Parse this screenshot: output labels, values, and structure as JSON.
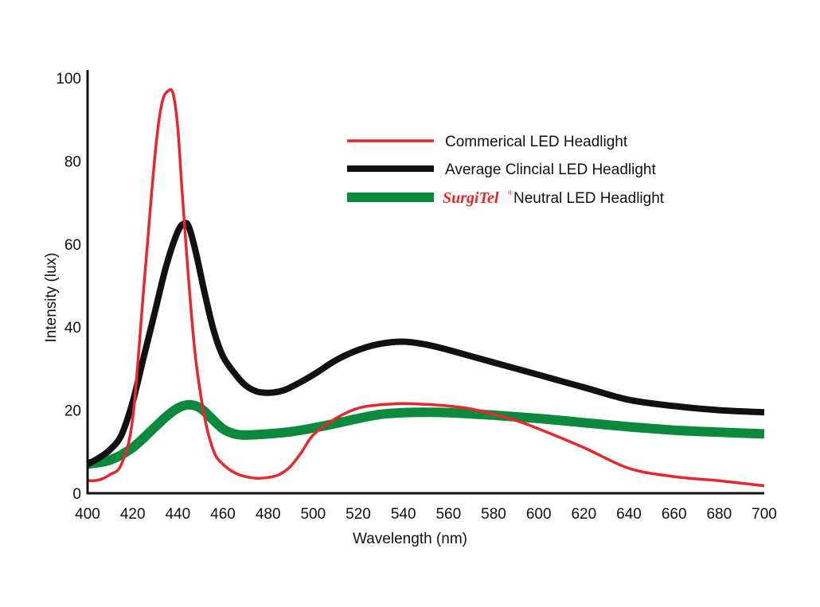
{
  "chart_data": {
    "type": "line",
    "title": "",
    "xlabel": "Wavelength (nm)",
    "ylabel": "Intensity (lux)",
    "xlim": [
      400,
      700
    ],
    "ylim": [
      0,
      100
    ],
    "xticks": [
      400,
      420,
      440,
      460,
      480,
      500,
      520,
      540,
      560,
      580,
      600,
      620,
      640,
      660,
      680,
      700
    ],
    "yticks": [
      0,
      20,
      40,
      60,
      80,
      100
    ],
    "grid": false,
    "legend_position": "top-right",
    "series": [
      {
        "name": "Commerical LED Headlight",
        "color": "#e8262b",
        "x": [
          400,
          405,
          410,
          415,
          420,
          425,
          430,
          433,
          436,
          438,
          440,
          442,
          445,
          448,
          452,
          456,
          460,
          465,
          470,
          475,
          480,
          485,
          490,
          495,
          500,
          510,
          520,
          530,
          540,
          550,
          560,
          570,
          580,
          590,
          600,
          620,
          640,
          660,
          680,
          700
        ],
        "y": [
          3,
          3.2,
          4.5,
          7,
          18,
          50,
          82,
          94,
          97,
          96,
          88,
          72,
          50,
          32,
          18,
          10,
          7,
          5,
          4,
          3.6,
          3.8,
          4.5,
          6.5,
          10,
          14,
          18,
          20.5,
          21.3,
          21.6,
          21.4,
          21,
          20.3,
          19,
          17.5,
          15.5,
          11,
          6,
          4,
          3,
          1.8
        ]
      },
      {
        "name": "Average Clincial LED Headlight",
        "color": "#111111",
        "x": [
          400,
          405,
          410,
          415,
          420,
          425,
          430,
          435,
          440,
          443,
          445,
          448,
          452,
          456,
          460,
          465,
          470,
          475,
          480,
          485,
          490,
          500,
          510,
          520,
          530,
          540,
          550,
          560,
          580,
          600,
          620,
          640,
          660,
          680,
          700
        ],
        "y": [
          7,
          8.5,
          10.5,
          14,
          22,
          33,
          44,
          55,
          63,
          65,
          64,
          58,
          48,
          39,
          33,
          29,
          26,
          24.5,
          24.2,
          24.5,
          25.5,
          28.5,
          32,
          34.5,
          36,
          36.5,
          35.8,
          34.5,
          31.5,
          28.5,
          25.5,
          22.5,
          21,
          20,
          19.5
        ]
      },
      {
        "name": "Neutral LED Headlight",
        "brand": "SurgiTel",
        "brand_mark": "®",
        "brand_color": "#e8262b",
        "color": "#0b8a3e",
        "x": [
          400,
          410,
          420,
          430,
          435,
          440,
          445,
          450,
          455,
          460,
          465,
          470,
          480,
          490,
          500,
          510,
          520,
          530,
          540,
          550,
          560,
          580,
          600,
          620,
          640,
          660,
          680,
          700
        ],
        "y": [
          7,
          8,
          11,
          16,
          18.5,
          20.5,
          21.3,
          20.5,
          18,
          15.5,
          14.3,
          14,
          14.3,
          14.8,
          15.7,
          16.8,
          18,
          19,
          19.4,
          19.5,
          19.4,
          18.8,
          18,
          17,
          16,
          15.2,
          14.7,
          14.3
        ]
      }
    ]
  }
}
